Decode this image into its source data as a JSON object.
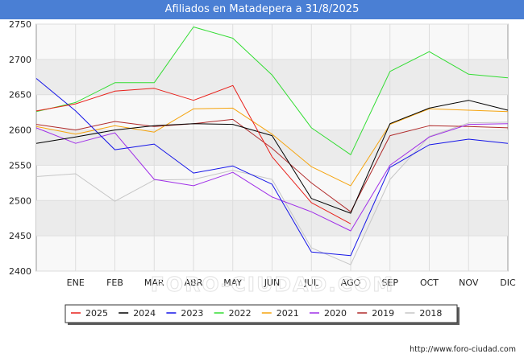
{
  "title": "Afiliados en Matadepera a 31/8/2025",
  "watermark": "FORO-CIUDAD.COM",
  "source_url": "http://www.foro-ciudad.com",
  "chart_data": {
    "type": "line",
    "title": "Afiliados en Matadepera a 31/8/2025",
    "categories": [
      "",
      "ENE",
      "FEB",
      "MAR",
      "ABR",
      "MAY",
      "JUN",
      "JUL",
      "AGO",
      "SEP",
      "OCT",
      "NOV",
      "DIC"
    ],
    "yticks": [
      2400,
      2450,
      2500,
      2550,
      2600,
      2650,
      2700,
      2750
    ],
    "ylim": [
      2400,
      2750
    ],
    "grid": true,
    "legend_position": "bottom",
    "series": [
      {
        "name": "2025",
        "color": "#e8201a",
        "values": [
          2627,
          2637,
          2655,
          2659,
          2642,
          2663,
          2562,
          2497,
          2467,
          null,
          null,
          null,
          null
        ]
      },
      {
        "name": "2024",
        "color": "#000000",
        "values": [
          2581,
          2590,
          2600,
          2606,
          2609,
          2608,
          2592,
          2503,
          2482,
          2609,
          2631,
          2642,
          2628
        ]
      },
      {
        "name": "2023",
        "color": "#1515e8",
        "values": [
          2673,
          2627,
          2572,
          2580,
          2539,
          2549,
          2523,
          2427,
          2422,
          2547,
          2579,
          2587,
          2581
        ]
      },
      {
        "name": "2022",
        "color": "#33dd33",
        "values": [
          2626,
          2639,
          2667,
          2667,
          2746,
          2730,
          2678,
          2603,
          2565,
          2683,
          2711,
          2679,
          2674
        ]
      },
      {
        "name": "2021",
        "color": "#f5a40f",
        "values": [
          2605,
          2594,
          2606,
          2597,
          2630,
          2631,
          2594,
          2548,
          2521,
          2608,
          2630,
          2628,
          2626
        ]
      },
      {
        "name": "2020",
        "color": "#a030e8",
        "values": [
          2603,
          2581,
          2596,
          2530,
          2521,
          2540,
          2505,
          2484,
          2457,
          2550,
          2590,
          2608,
          2609
        ]
      },
      {
        "name": "2019",
        "color": "#b02a2a",
        "values": [
          2608,
          2600,
          2612,
          2605,
          2609,
          2615,
          2574,
          2525,
          2484,
          2592,
          2606,
          2605,
          2603
        ]
      },
      {
        "name": "2018",
        "color": "#c6c6c6",
        "values": [
          2534,
          2538,
          2499,
          2529,
          2530,
          2543,
          2530,
          2433,
          2409,
          2530,
          2591,
          2610,
          2611
        ]
      }
    ]
  }
}
